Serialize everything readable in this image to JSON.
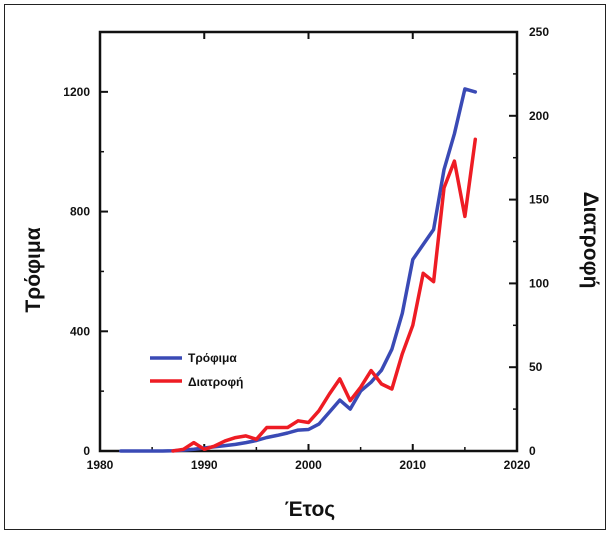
{
  "chart_data": {
    "type": "line",
    "xlabel": "Έτος",
    "ylabel_left": "Τρόφιμα",
    "ylabel_right": "Διατροφή",
    "xlim": [
      1980,
      2020
    ],
    "ylim_left": [
      0,
      1400
    ],
    "ylim_right": [
      0,
      250
    ],
    "x_ticks": [
      "1980",
      "1990",
      "2000",
      "2010",
      "2020"
    ],
    "y_ticks_left": [
      "0",
      "400",
      "800",
      "1200"
    ],
    "y_ticks_right": [
      "0",
      "50",
      "100",
      "150",
      "200",
      "250"
    ],
    "legend_position": "lower-left",
    "series": [
      {
        "name": "Τρόφιμα",
        "axis": "left",
        "color": "#3a4ab5",
        "x": [
          1982,
          1983,
          1984,
          1985,
          1986,
          1987,
          1988,
          1989,
          1990,
          1991,
          1992,
          1993,
          1994,
          1995,
          1996,
          1997,
          1998,
          1999,
          2000,
          2001,
          2002,
          2003,
          2004,
          2005,
          2006,
          2007,
          2008,
          2009,
          2010,
          2011,
          2012,
          2013,
          2014,
          2015,
          2016
        ],
        "values": [
          0,
          0,
          0,
          0,
          0,
          1,
          3,
          6,
          10,
          14,
          18,
          22,
          28,
          35,
          45,
          52,
          60,
          70,
          72,
          90,
          130,
          170,
          140,
          200,
          230,
          270,
          340,
          460,
          640,
          690,
          740,
          940,
          1060,
          1210,
          1200
        ]
      },
      {
        "name": "Διατροφή",
        "axis": "right",
        "color": "#ee1c24",
        "x": [
          1987,
          1988,
          1989,
          1990,
          1991,
          1992,
          1993,
          1994,
          1995,
          1996,
          1997,
          1998,
          1999,
          2000,
          2001,
          2002,
          2003,
          2004,
          2005,
          2006,
          2007,
          2008,
          2009,
          2010,
          2011,
          2012,
          2013,
          2014,
          2015,
          2016
        ],
        "values": [
          0,
          1,
          5,
          1,
          3,
          6,
          8,
          9,
          7,
          14,
          14,
          14,
          18,
          17,
          24,
          34,
          43,
          30,
          38,
          48,
          40,
          37,
          58,
          75,
          106,
          101,
          157,
          173,
          140,
          186
        ]
      }
    ]
  }
}
